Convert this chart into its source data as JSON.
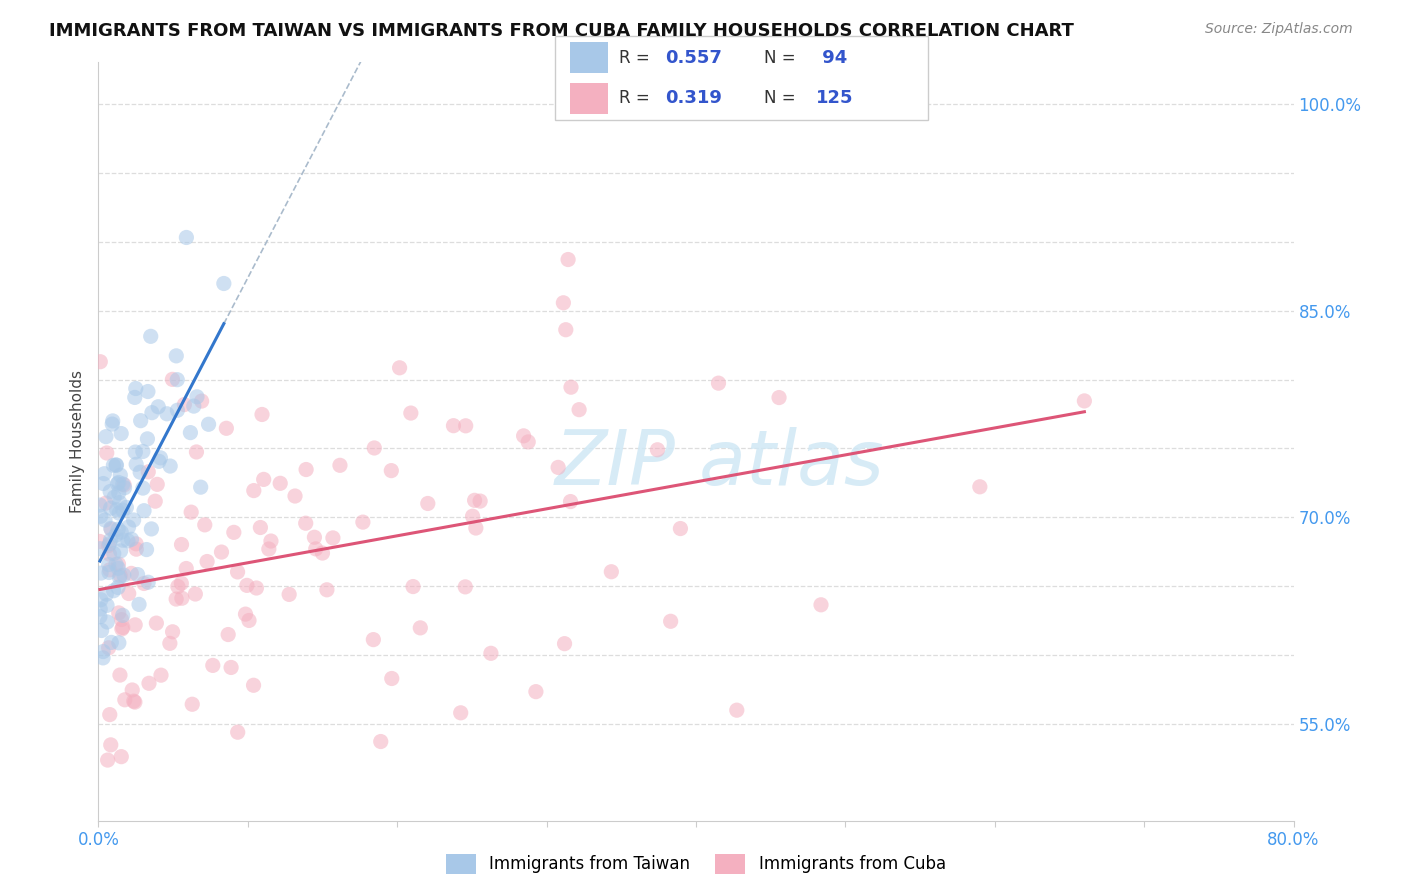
{
  "title": "IMMIGRANTS FROM TAIWAN VS IMMIGRANTS FROM CUBA FAMILY HOUSEHOLDS CORRELATION CHART",
  "source": "Source: ZipAtlas.com",
  "ylabel": "Family Households",
  "xmin": 0.0,
  "xmax": 0.8,
  "ymin": 0.48,
  "ymax": 1.03,
  "yticks": [
    0.55,
    0.6,
    0.65,
    0.7,
    0.75,
    0.8,
    0.85,
    0.9,
    0.95,
    1.0
  ],
  "ytick_labels": [
    "55.0%",
    "",
    "",
    "70.0%",
    "",
    "",
    "85.0%",
    "",
    "",
    "100.0%"
  ],
  "xticks": [
    0.0,
    0.1,
    0.2,
    0.3,
    0.4,
    0.5,
    0.6,
    0.7,
    0.8
  ],
  "xtick_labels": [
    "0.0%",
    "",
    "",
    "",
    "",
    "",
    "",
    "",
    "80.0%"
  ],
  "taiwan_color": "#a8c8e8",
  "cuba_color": "#f4b0c0",
  "taiwan_R": 0.557,
  "taiwan_N": 94,
  "cuba_R": 0.319,
  "cuba_N": 125,
  "taiwan_line_color": "#3377cc",
  "cuba_line_color": "#dd5577",
  "taiwan_dash_color": "#aabbcc",
  "legend_R_color": "#3355cc",
  "legend_text_color": "#333333",
  "background_color": "#ffffff",
  "grid_color": "#dddddd",
  "tick_color": "#4499ee",
  "watermark_color": "#d0e8f5",
  "title_fontsize": 13,
  "source_fontsize": 10,
  "tick_fontsize": 12,
  "ylabel_fontsize": 11,
  "scatter_size": 120,
  "scatter_alpha": 0.55,
  "line_width": 2.2
}
